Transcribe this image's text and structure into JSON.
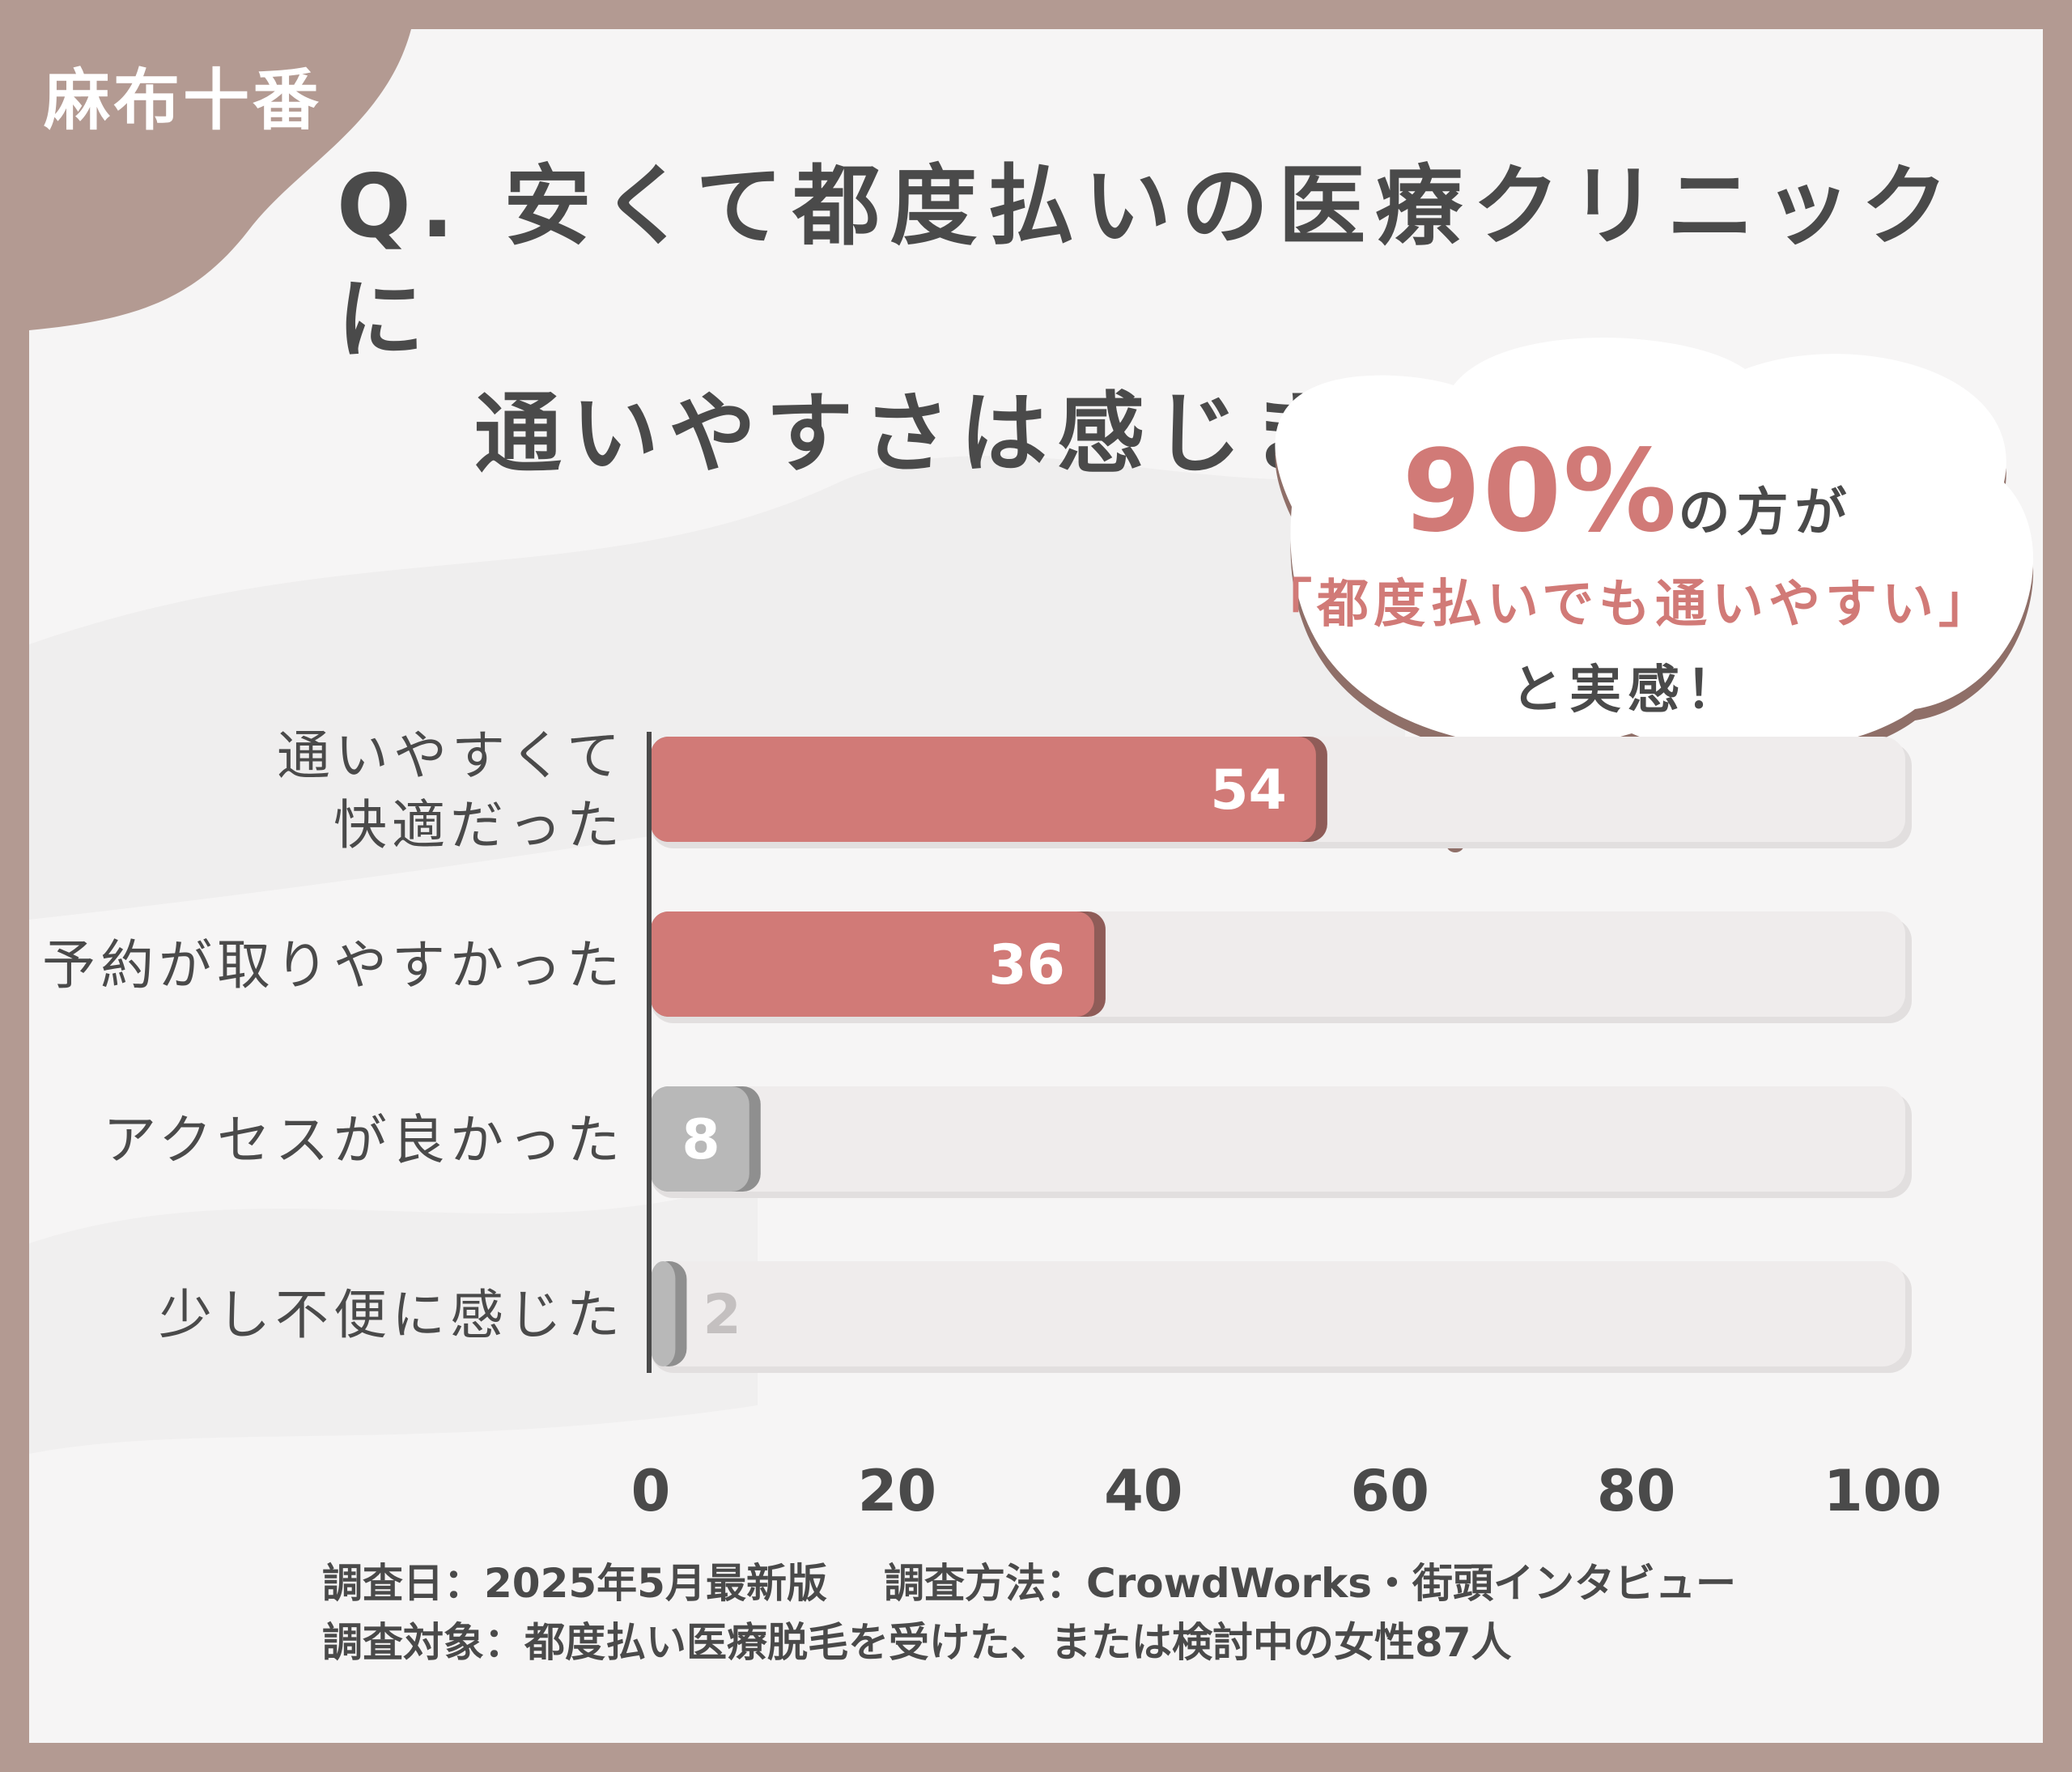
{
  "area_tag": "麻布十番",
  "question": {
    "line1": "Q. 安くて都度払いの医療クリニックに",
    "line2": "通いやすさは感じましたか？"
  },
  "callout": {
    "percent": "90%",
    "text1": "の方が",
    "quote": "「都度払いでも通いやすい」",
    "text2": "と実感！"
  },
  "chart_data": {
    "type": "bar",
    "orientation": "horizontal",
    "categories": [
      "通いやすくて\n快適だった",
      "予約が取りやすかった",
      "アクセスが良かった",
      "少し不便に感じた"
    ],
    "values": [
      54,
      36,
      8,
      2
    ],
    "xlim": [
      0,
      100
    ],
    "xticks": [
      0,
      20,
      40,
      60,
      80,
      100
    ],
    "grid": false,
    "colors": {
      "highlight": "#d17a77",
      "highlight_shadow": "#8f5c58",
      "neutral": "#b8b8b8",
      "neutral_shadow": "#8f8f8f",
      "track": "#efecec",
      "axis": "#4a4a4a"
    },
    "highlight_count": 2
  },
  "footer": {
    "date": "調査日：2025年5月最新版",
    "method": "調査方法：CrowdWorks・街頭インタビュー",
    "target": "調査対象：都度払い医療脱毛を受けた、または検討中の女性87人"
  }
}
